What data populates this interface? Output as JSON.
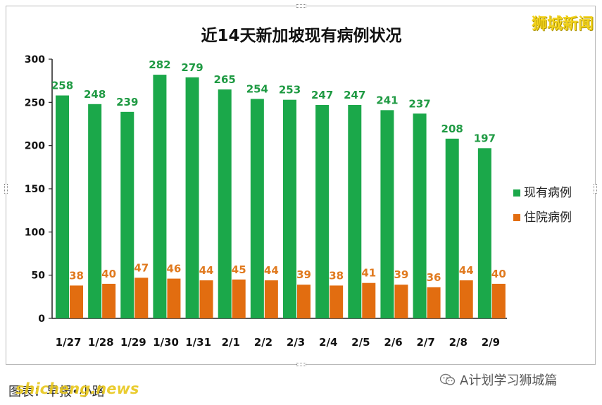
{
  "brand_watermark": "狮城新闻",
  "wechat_label": "A计划学习狮城篇",
  "credit": "图表：早报•小路",
  "site_watermark": "shicheng.news",
  "colors": {
    "current": "#1ba84a",
    "hospital": "#e26d10",
    "label_current": "#1f9a43",
    "label_hospital": "#e07a1f"
  },
  "chart_data": {
    "type": "bar",
    "title": "近14天新加坡现有病例状况",
    "categories": [
      "1/27",
      "1/28",
      "1/29",
      "1/30",
      "1/31",
      "2/1",
      "2/2",
      "2/3",
      "2/4",
      "2/5",
      "2/6",
      "2/7",
      "2/8",
      "2/9"
    ],
    "series": [
      {
        "name": "现有病例",
        "values": [
          258,
          248,
          239,
          282,
          279,
          265,
          254,
          253,
          247,
          247,
          241,
          237,
          208,
          197
        ]
      },
      {
        "name": "住院病例",
        "values": [
          38,
          40,
          47,
          46,
          44,
          45,
          44,
          39,
          38,
          41,
          39,
          36,
          44,
          40
        ]
      }
    ],
    "ylim": [
      0,
      300
    ],
    "yticks": [
      0,
      50,
      100,
      150,
      200,
      250,
      300
    ],
    "legend": "right",
    "grid": false
  }
}
